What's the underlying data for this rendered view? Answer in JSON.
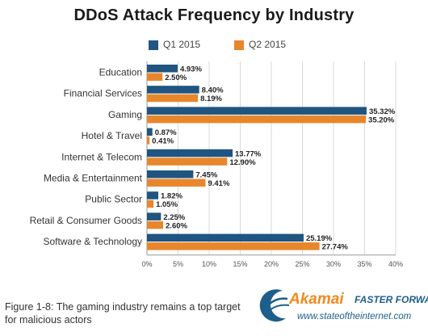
{
  "chart_data": {
    "type": "bar",
    "orientation": "horizontal",
    "title": "DDoS Attack Frequency by Industry",
    "categories": [
      "Education",
      "Financial Services",
      "Gaming",
      "Hotel & Travel",
      "Internet & Telecom",
      "Media & Entertainment",
      "Public Sector",
      "Retail & Consumer Goods",
      "Software & Technology"
    ],
    "series": [
      {
        "name": "Q1 2015",
        "color": "#1f5580",
        "values": [
          4.93,
          8.4,
          35.32,
          0.87,
          13.77,
          7.45,
          1.82,
          2.25,
          25.19
        ],
        "labels": [
          "4.93%",
          "8.40%",
          "35.32%",
          "0.87%",
          "13.77%",
          "7.45%",
          "1.82%",
          "2.25%",
          "25.19%"
        ]
      },
      {
        "name": "Q2 2015",
        "color": "#e8862b",
        "values": [
          2.5,
          8.19,
          35.2,
          0.41,
          12.9,
          9.41,
          1.05,
          2.6,
          27.74
        ],
        "labels": [
          "2.50%",
          "8.19%",
          "35.20%",
          "0.41%",
          "12.90%",
          "9.41%",
          "1.05%",
          "2.60%",
          "27.74%"
        ]
      }
    ],
    "xlim": [
      0,
      40
    ],
    "xticks": [
      0,
      5,
      10,
      15,
      20,
      25,
      30,
      35,
      40
    ],
    "xtick_labels": [
      "0%",
      "5%",
      "10%",
      "15%",
      "20%",
      "25%",
      "30%",
      "35%",
      "40%"
    ],
    "grid": true,
    "legend_position": "top"
  },
  "caption": "Figure 1-8: The gaming industry remains a top target for malicious actors",
  "logo": {
    "brand": "Akamai",
    "tagline": "FASTER FORWARD",
    "url": "www.stateoftheinternet.com"
  }
}
